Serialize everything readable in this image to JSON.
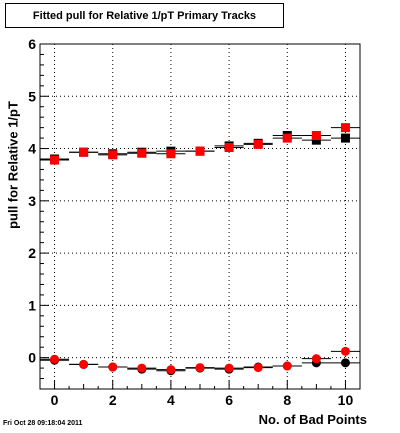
{
  "chart_data": {
    "type": "scatter",
    "title": "Fitted pull for Relative 1/pT Primary Tracks",
    "xlabel": "No. of Bad Points",
    "ylabel": "pull for Relative 1/pT",
    "xlim": [
      -0.5,
      10.5
    ],
    "ylim": [
      -0.6,
      6
    ],
    "x_ticks": [
      0,
      2,
      4,
      6,
      8,
      10
    ],
    "y_ticks": [
      0,
      1,
      2,
      3,
      4,
      5,
      6
    ],
    "grid": true,
    "x": [
      0,
      1,
      2,
      3,
      4,
      5,
      6,
      7,
      8,
      9,
      10
    ],
    "series": [
      {
        "marker": "square",
        "color": "#000000",
        "values": [
          3.8,
          3.93,
          3.9,
          3.93,
          3.95,
          3.95,
          4.05,
          4.1,
          4.25,
          4.16,
          4.2
        ]
      },
      {
        "marker": "square",
        "color": "#ff0000",
        "values": [
          3.78,
          3.93,
          3.88,
          3.91,
          3.9,
          3.95,
          4.02,
          4.08,
          4.2,
          4.25,
          4.4
        ]
      },
      {
        "marker": "circle",
        "color": "#000000",
        "values": [
          -0.05,
          -0.13,
          -0.18,
          -0.22,
          -0.25,
          -0.2,
          -0.22,
          -0.18,
          -0.16,
          -0.1,
          -0.1
        ]
      },
      {
        "marker": "circle",
        "color": "#ff0000",
        "values": [
          -0.03,
          -0.13,
          -0.18,
          -0.2,
          -0.23,
          -0.19,
          -0.2,
          -0.19,
          -0.16,
          -0.02,
          0.12
        ]
      }
    ],
    "timestamp": "Fri Oct 28 09:18:04 2011"
  }
}
